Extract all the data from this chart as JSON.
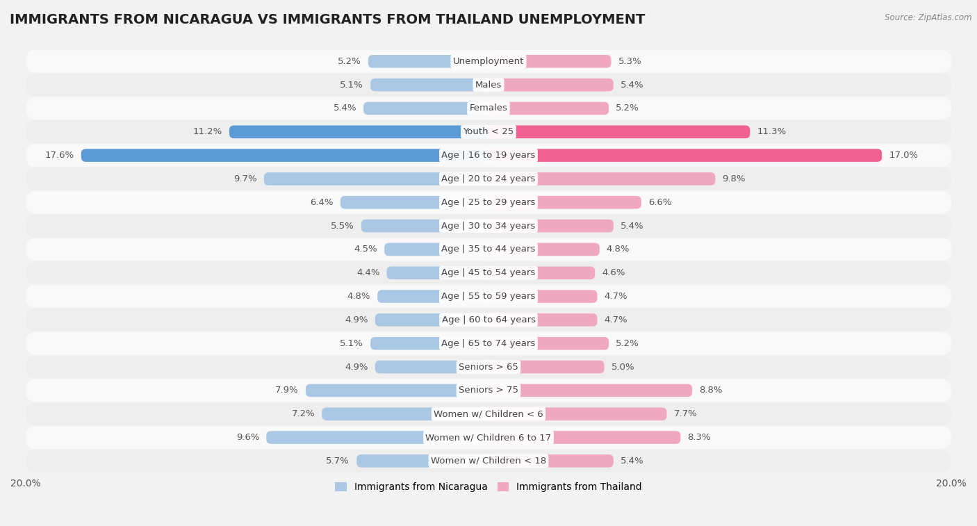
{
  "title": "IMMIGRANTS FROM NICARAGUA VS IMMIGRANTS FROM THAILAND UNEMPLOYMENT",
  "source": "Source: ZipAtlas.com",
  "categories": [
    "Unemployment",
    "Males",
    "Females",
    "Youth < 25",
    "Age | 16 to 19 years",
    "Age | 20 to 24 years",
    "Age | 25 to 29 years",
    "Age | 30 to 34 years",
    "Age | 35 to 44 years",
    "Age | 45 to 54 years",
    "Age | 55 to 59 years",
    "Age | 60 to 64 years",
    "Age | 65 to 74 years",
    "Seniors > 65",
    "Seniors > 75",
    "Women w/ Children < 6",
    "Women w/ Children 6 to 17",
    "Women w/ Children < 18"
  ],
  "nicaragua_values": [
    5.2,
    5.1,
    5.4,
    11.2,
    17.6,
    9.7,
    6.4,
    5.5,
    4.5,
    4.4,
    4.8,
    4.9,
    5.1,
    4.9,
    7.9,
    7.2,
    9.6,
    5.7
  ],
  "thailand_values": [
    5.3,
    5.4,
    5.2,
    11.3,
    17.0,
    9.8,
    6.6,
    5.4,
    4.8,
    4.6,
    4.7,
    4.7,
    5.2,
    5.0,
    8.8,
    7.7,
    8.3,
    5.4
  ],
  "nicaragua_color": "#aac8e4",
  "thailand_color": "#f0a8c0",
  "nicaragua_highlight_color": "#5b9bd5",
  "thailand_highlight_color": "#f06090",
  "background_color": "#f2f2f2",
  "row_colors": [
    "#f9f9f9",
    "#eeeeee"
  ],
  "xlim": 20.0,
  "legend_nicaragua": "Immigrants from Nicaragua",
  "legend_thailand": "Immigrants from Thailand",
  "title_fontsize": 14,
  "label_fontsize": 9.5,
  "value_fontsize": 9.5,
  "bar_height": 0.55
}
